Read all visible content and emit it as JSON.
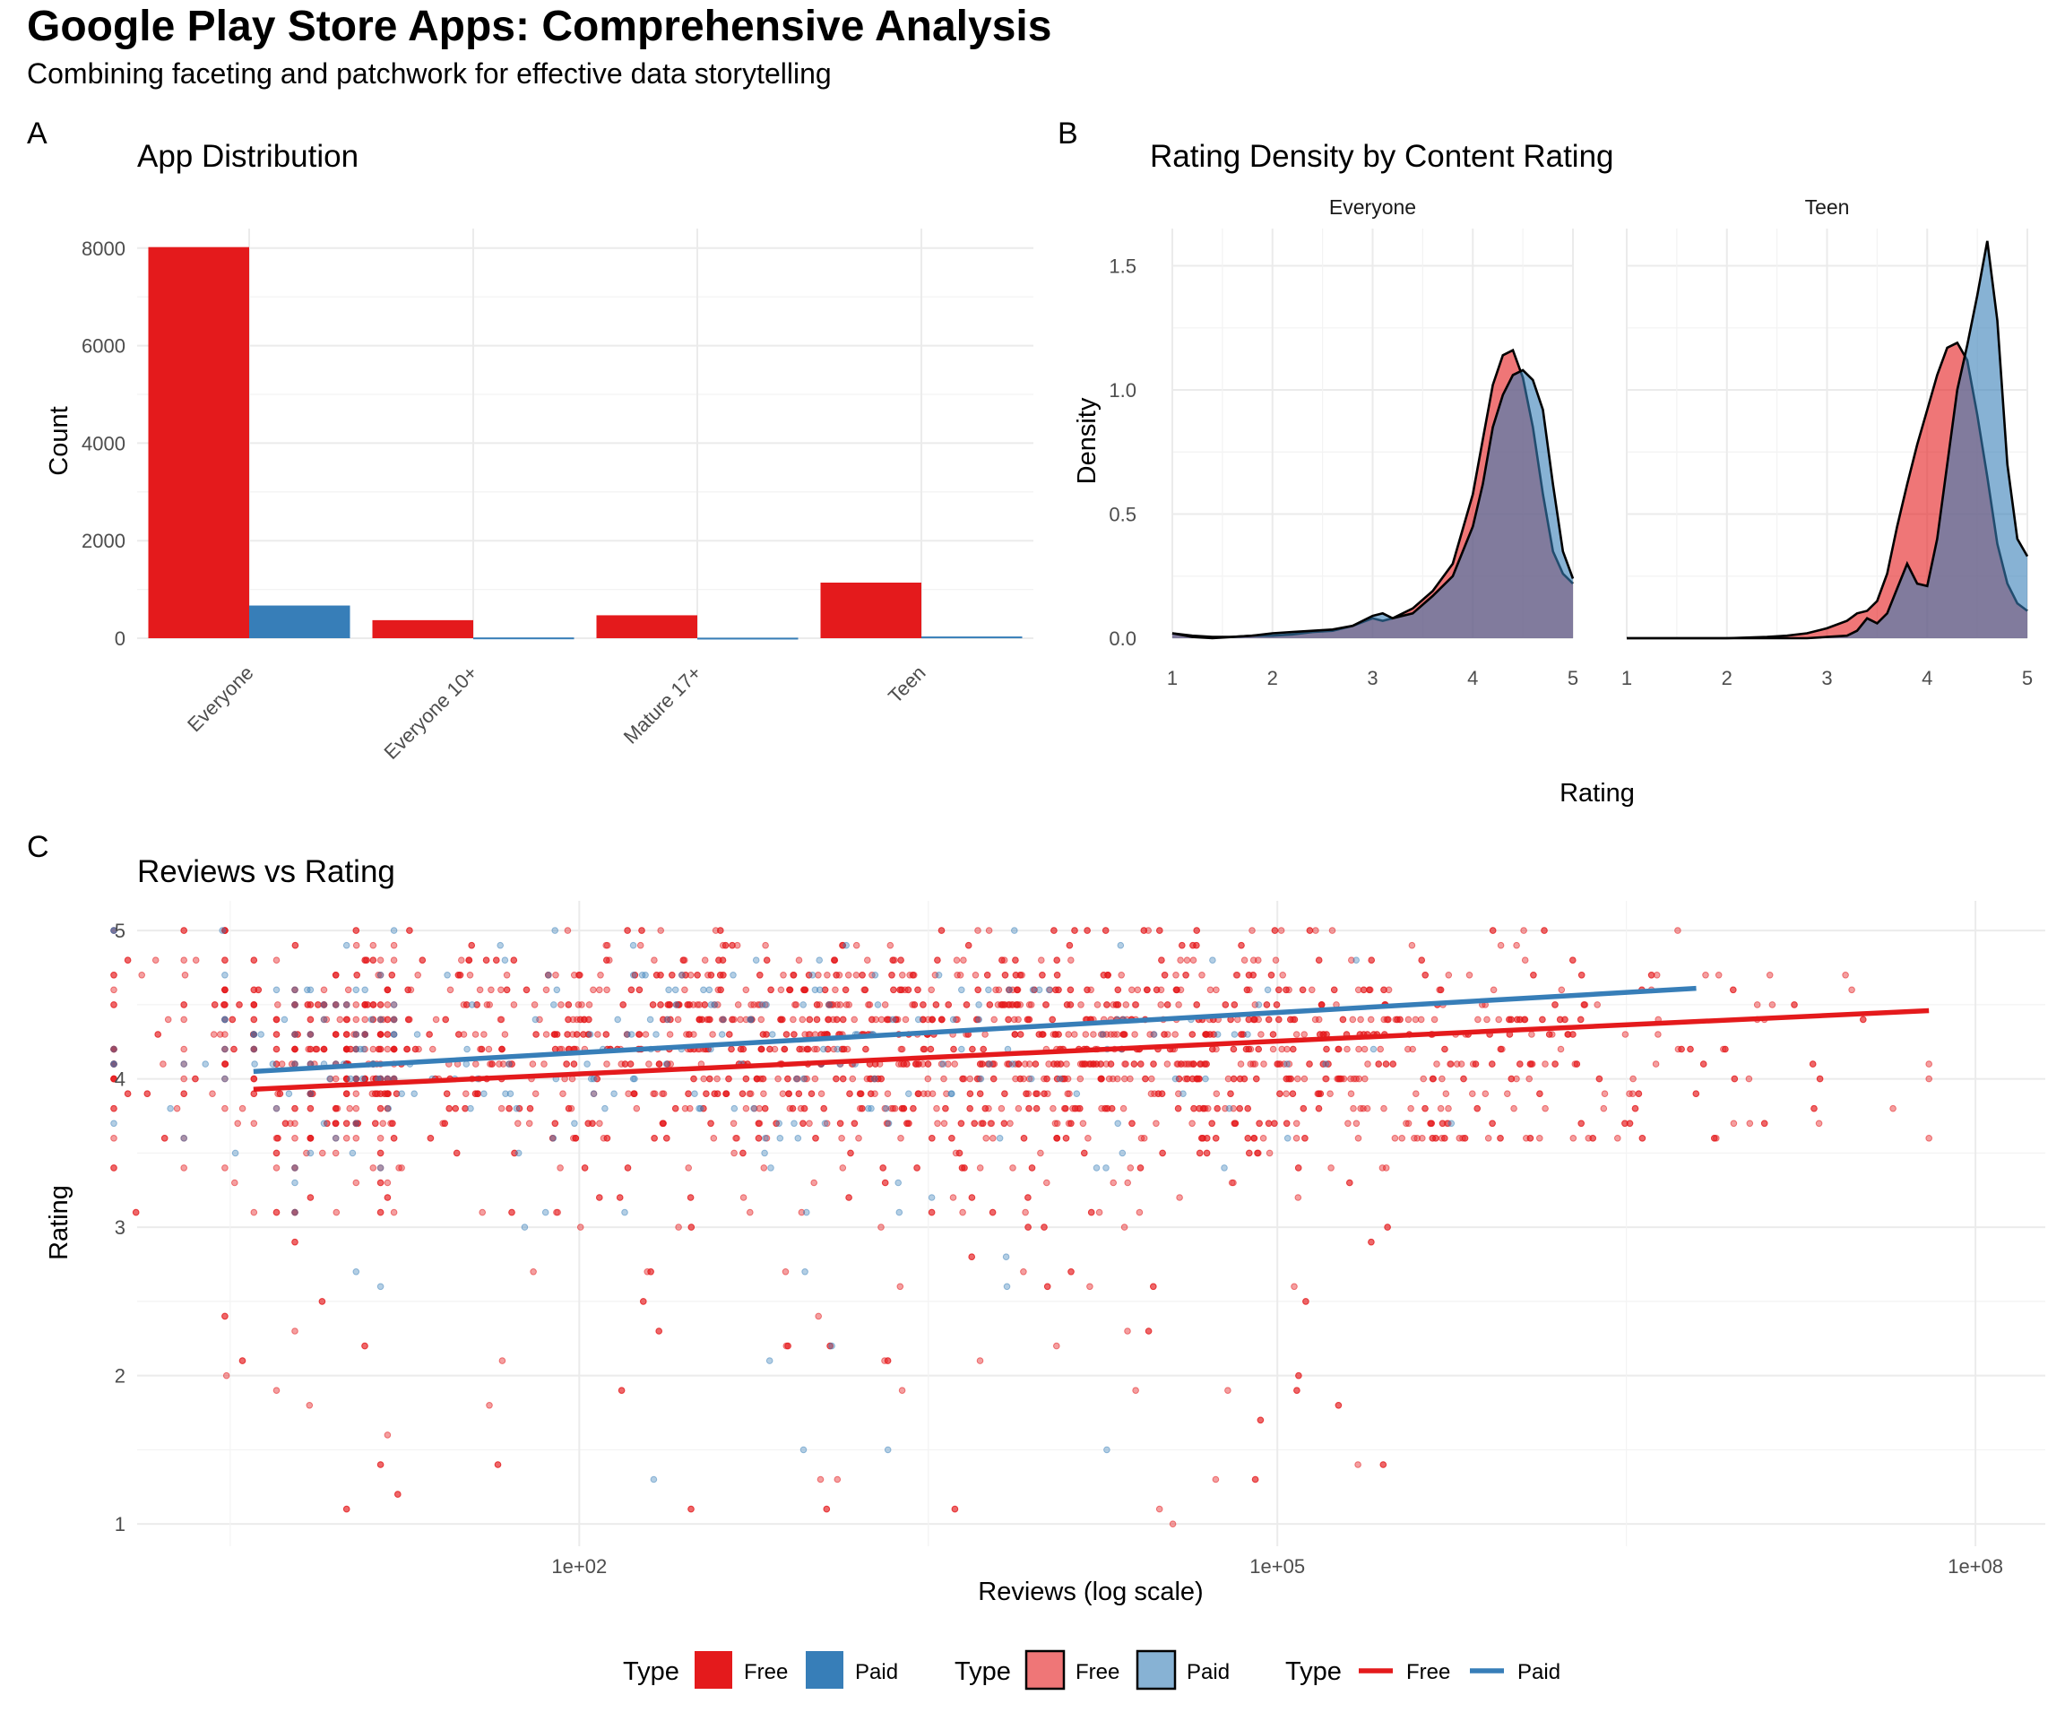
{
  "header": {
    "title": "Google Play Store Apps: Comprehensive Analysis",
    "subtitle": "Combining faceting and patchwork for effective data storytelling"
  },
  "colors": {
    "free": "#E41A1C",
    "paid": "#377EB8",
    "grid": "#ebebeb"
  },
  "chart_data": [
    {
      "tag": "A",
      "type": "bar",
      "title": "App Distribution",
      "xlabel": "",
      "ylabel": "Count",
      "categories": [
        "Everyone",
        "Everyone 10+",
        "Mature 17+",
        "Teen"
      ],
      "series": [
        {
          "name": "Free",
          "values": [
            8020,
            370,
            470,
            1140
          ]
        },
        {
          "name": "Paid",
          "values": [
            670,
            15,
            10,
            35
          ]
        }
      ],
      "ylim": [
        0,
        8400
      ],
      "yticks": [
        0,
        2000,
        4000,
        6000,
        8000
      ],
      "grid": true
    },
    {
      "tag": "B",
      "type": "area",
      "title": "Rating Density by Content Rating",
      "xlabel": "Rating",
      "ylabel": "Density",
      "xlim": [
        1,
        5
      ],
      "ylim": [
        0,
        1.65
      ],
      "xticks": [
        1,
        2,
        3,
        4,
        5
      ],
      "yticks": [
        0.0,
        0.5,
        1.0,
        1.5
      ],
      "ytick_labels": [
        "0.0",
        "0.5",
        "1.0",
        "1.5"
      ],
      "grid": true,
      "facets": [
        {
          "label": "Everyone",
          "x": [
            1.0,
            1.2,
            1.4,
            1.6,
            1.8,
            2.0,
            2.2,
            2.4,
            2.6,
            2.8,
            3.0,
            3.1,
            3.2,
            3.4,
            3.6,
            3.8,
            4.0,
            4.1,
            4.2,
            4.3,
            4.4,
            4.5,
            4.6,
            4.7,
            4.8,
            4.9,
            5.0
          ],
          "series": [
            {
              "name": "Free",
              "values": [
                0.02,
                0.01,
                0.005,
                0.005,
                0.01,
                0.01,
                0.015,
                0.025,
                0.03,
                0.05,
                0.08,
                0.07,
                0.08,
                0.12,
                0.19,
                0.3,
                0.58,
                0.8,
                1.02,
                1.14,
                1.16,
                1.05,
                0.85,
                0.58,
                0.35,
                0.26,
                0.22
              ]
            },
            {
              "name": "Paid",
              "values": [
                0.02,
                0.005,
                0.0,
                0.005,
                0.01,
                0.02,
                0.025,
                0.03,
                0.035,
                0.05,
                0.09,
                0.1,
                0.08,
                0.1,
                0.17,
                0.25,
                0.45,
                0.62,
                0.85,
                0.98,
                1.06,
                1.08,
                1.04,
                0.92,
                0.62,
                0.35,
                0.24
              ]
            }
          ]
        },
        {
          "label": "Teen",
          "x": [
            1.0,
            1.5,
            2.0,
            2.4,
            2.6,
            2.8,
            3.0,
            3.2,
            3.3,
            3.4,
            3.5,
            3.6,
            3.7,
            3.8,
            3.9,
            4.0,
            4.1,
            4.2,
            4.3,
            4.4,
            4.5,
            4.6,
            4.7,
            4.8,
            4.9,
            5.0
          ],
          "series": [
            {
              "name": "Free",
              "values": [
                0.0,
                0.0,
                0.0,
                0.005,
                0.01,
                0.02,
                0.04,
                0.07,
                0.1,
                0.11,
                0.15,
                0.26,
                0.45,
                0.62,
                0.78,
                0.92,
                1.06,
                1.17,
                1.19,
                1.12,
                0.9,
                0.65,
                0.38,
                0.22,
                0.14,
                0.11
              ]
            },
            {
              "name": "Paid",
              "values": [
                0.0,
                0.0,
                0.0,
                0.0,
                0.0,
                0.0,
                0.005,
                0.01,
                0.03,
                0.08,
                0.06,
                0.1,
                0.2,
                0.3,
                0.22,
                0.21,
                0.4,
                0.7,
                1.0,
                1.18,
                1.38,
                1.6,
                1.28,
                0.7,
                0.4,
                0.33
              ]
            }
          ]
        }
      ]
    },
    {
      "tag": "C",
      "type": "scatter",
      "title": "Reviews vs Rating",
      "xlabel": "Reviews (log scale)",
      "ylabel": "Rating",
      "xscale": "log10",
      "xlim": [
        0.1,
        8.3
      ],
      "ylim": [
        0.85,
        5.2
      ],
      "xticks": [
        2,
        5,
        8
      ],
      "xtick_labels": [
        "1e+02",
        "1e+05",
        "1e+08"
      ],
      "yticks": [
        1,
        2,
        3,
        4,
        5
      ],
      "grid": true,
      "series": [
        {
          "name": "Free",
          "count_estimate": 8000
        },
        {
          "name": "Paid",
          "count_estimate": 600
        }
      ],
      "trend_lines": [
        {
          "name": "Free",
          "x": [
            0.6,
            7.8
          ],
          "y": [
            3.93,
            4.46
          ]
        },
        {
          "name": "Paid",
          "x": [
            0.6,
            6.8
          ],
          "y": [
            4.05,
            4.61
          ]
        }
      ]
    }
  ],
  "legends": [
    {
      "title": "Type",
      "kind": "fill",
      "items": [
        {
          "label": "Free"
        },
        {
          "label": "Paid"
        }
      ]
    },
    {
      "title": "Type",
      "kind": "fill-outline",
      "items": [
        {
          "label": "Free"
        },
        {
          "label": "Paid"
        }
      ]
    },
    {
      "title": "Type",
      "kind": "line",
      "items": [
        {
          "label": "Free"
        },
        {
          "label": "Paid"
        }
      ]
    }
  ]
}
